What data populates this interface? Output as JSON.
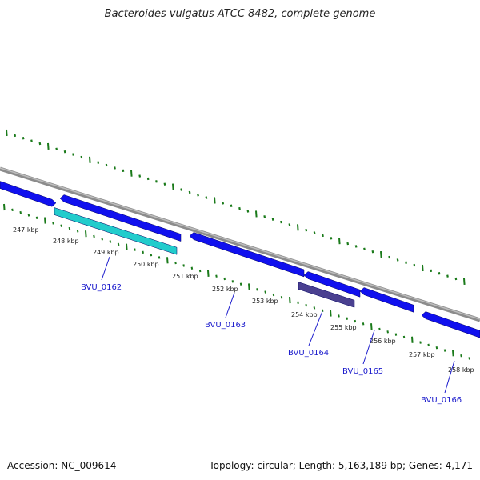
{
  "header": {
    "title": "Bacteroides vulgatus ATCC 8482, complete genome"
  },
  "footer": {
    "accession": "Accession: NC_009614",
    "topology": "Topology: circular; Length: 5,163,189 bp; Genes: 4,171"
  },
  "colors": {
    "backbone": "#8c8c8c",
    "tick": "#1a7a1a",
    "gene_forward": "#1010ee",
    "gene_highlight_cyan": "#22cccc",
    "gene_highlight_purple": "#4a4090",
    "label": "#1a1acc"
  },
  "ruler": {
    "labels": [
      "247 kbp",
      "248 kbp",
      "249 kbp",
      "250 kbp",
      "251 kbp",
      "252 kbp",
      "253 kbp",
      "254 kbp",
      "255 kbp",
      "256 kbp",
      "257 kbp",
      "258 kbp"
    ]
  },
  "genes": {
    "labels": [
      "BVU_0162",
      "BVU_0163",
      "BVU_0164",
      "BVU_0165",
      "BVU_0166"
    ]
  }
}
